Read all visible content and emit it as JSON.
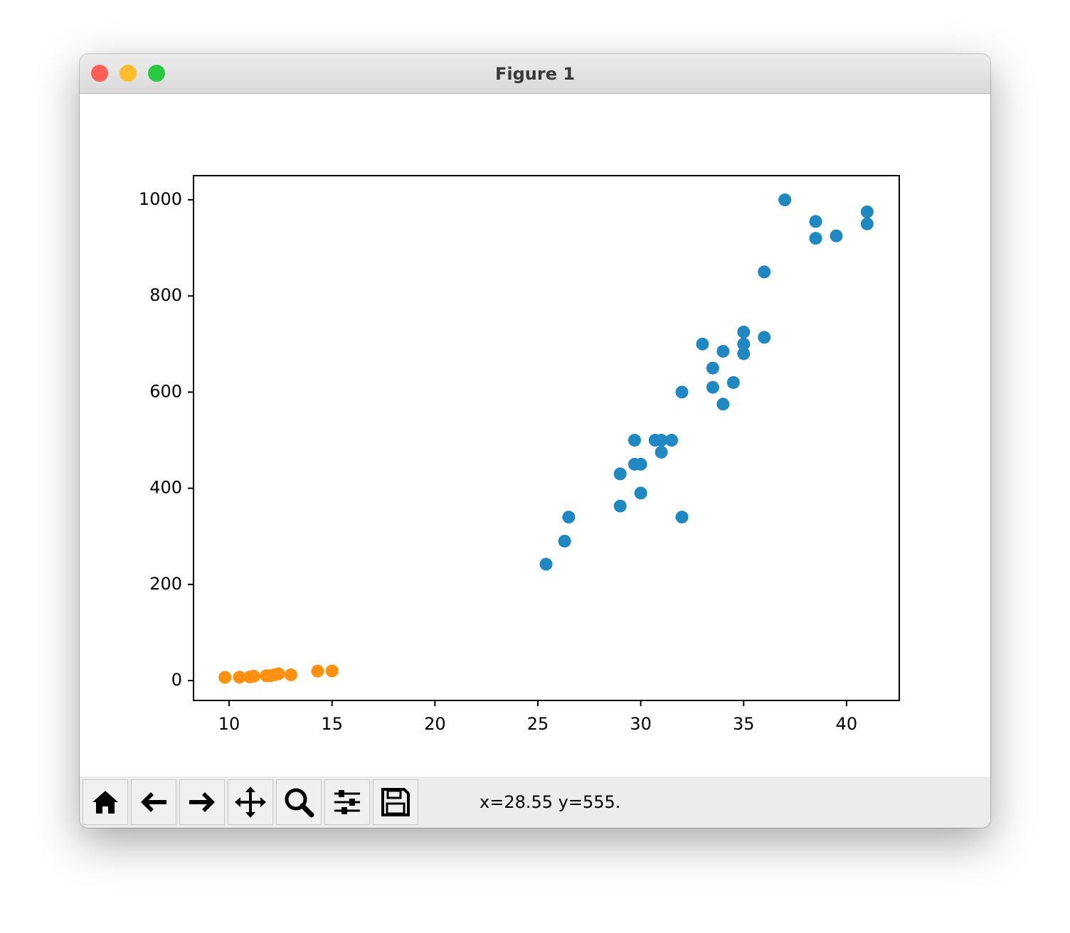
{
  "window": {
    "title": "Figure 1"
  },
  "status": "x=28.55 y=555.",
  "chart_data": {
    "type": "scatter",
    "series": [
      {
        "color": "#1f88c2",
        "x": [
          25.4,
          26.3,
          26.5,
          29,
          29,
          29.7,
          29.7,
          30,
          30,
          30.7,
          31,
          31,
          31.5,
          32,
          32,
          33,
          33.5,
          33.5,
          34,
          34,
          34.5,
          35,
          35,
          35,
          36,
          36,
          37,
          38.5,
          38.5,
          39.5,
          41,
          41
        ],
        "values": [
          242,
          290,
          340,
          363,
          430,
          500,
          450,
          450,
          390,
          500,
          500,
          475,
          500,
          600,
          340,
          700,
          650,
          610,
          685,
          575,
          620,
          725,
          700,
          680,
          714,
          850,
          1000,
          955,
          920,
          925,
          975,
          950
        ]
      },
      {
        "color": "#ff9010",
        "x": [
          9.8,
          10.5,
          11,
          11.2,
          11.8,
          12,
          12.2,
          12.4,
          13,
          14.3,
          15
        ],
        "values": [
          6.7,
          7,
          7.5,
          9,
          10,
          10,
          12,
          14,
          12,
          19.7,
          20
        ]
      }
    ],
    "xlim": [
      8.27,
      42.56
    ],
    "ylim": [
      -41.4,
      1050.3
    ],
    "xticks": [
      10,
      15,
      20,
      25,
      30,
      35,
      40
    ],
    "yticks": [
      0,
      200,
      400,
      600,
      800,
      1000
    ],
    "grid": false
  }
}
